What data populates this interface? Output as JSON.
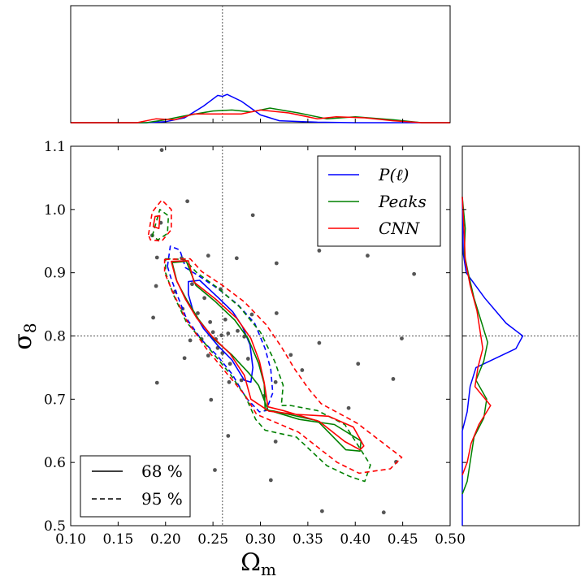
{
  "chart_data": {
    "type": "scatter",
    "xlabel": "Ωm",
    "ylabel": "σ8",
    "xlim": [
      0.1,
      0.5
    ],
    "ylim": [
      0.5,
      1.1
    ],
    "x_ticks": [
      "0.10",
      "0.15",
      "0.20",
      "0.25",
      "0.30",
      "0.35",
      "0.40",
      "0.45",
      "0.50"
    ],
    "y_ticks": [
      "0.5",
      "0.6",
      "0.7",
      "0.8",
      "0.9",
      "1.0",
      "1.1"
    ],
    "fiducial": {
      "x": 0.26,
      "y": 0.8
    },
    "grid": false,
    "points": [
      [
        0.196,
        1.094
      ],
      [
        0.223,
        1.013
      ],
      [
        0.292,
        0.991
      ],
      [
        0.186,
        0.959
      ],
      [
        0.195,
        0.979
      ],
      [
        0.191,
        0.924
      ],
      [
        0.217,
        0.923
      ],
      [
        0.245,
        0.927
      ],
      [
        0.275,
        0.923
      ],
      [
        0.317,
        0.915
      ],
      [
        0.362,
        0.935
      ],
      [
        0.413,
        0.927
      ],
      [
        0.462,
        0.898
      ],
      [
        0.19,
        0.879
      ],
      [
        0.21,
        0.87
      ],
      [
        0.228,
        0.882
      ],
      [
        0.241,
        0.86
      ],
      [
        0.258,
        0.874
      ],
      [
        0.187,
        0.829
      ],
      [
        0.218,
        0.843
      ],
      [
        0.234,
        0.836
      ],
      [
        0.247,
        0.822
      ],
      [
        0.263,
        0.826
      ],
      [
        0.291,
        0.834
      ],
      [
        0.317,
        0.836
      ],
      [
        0.226,
        0.793
      ],
      [
        0.238,
        0.795
      ],
      [
        0.25,
        0.806
      ],
      [
        0.253,
        0.795
      ],
      [
        0.259,
        0.801
      ],
      [
        0.266,
        0.804
      ],
      [
        0.276,
        0.808
      ],
      [
        0.283,
        0.799
      ],
      [
        0.362,
        0.789
      ],
      [
        0.449,
        0.796
      ],
      [
        0.22,
        0.765
      ],
      [
        0.245,
        0.769
      ],
      [
        0.255,
        0.781
      ],
      [
        0.26,
        0.773
      ],
      [
        0.268,
        0.756
      ],
      [
        0.287,
        0.764
      ],
      [
        0.332,
        0.77
      ],
      [
        0.403,
        0.756
      ],
      [
        0.191,
        0.726
      ],
      [
        0.267,
        0.727
      ],
      [
        0.28,
        0.73
      ],
      [
        0.316,
        0.727
      ],
      [
        0.344,
        0.746
      ],
      [
        0.44,
        0.732
      ],
      [
        0.248,
        0.699
      ],
      [
        0.304,
        0.705
      ],
      [
        0.393,
        0.686
      ],
      [
        0.266,
        0.642
      ],
      [
        0.316,
        0.633
      ],
      [
        0.252,
        0.588
      ],
      [
        0.311,
        0.572
      ],
      [
        0.443,
        0.601
      ],
      [
        0.365,
        0.523
      ],
      [
        0.43,
        0.521
      ]
    ],
    "series": [
      {
        "name": "P(ℓ)",
        "color": "#0000ff",
        "contour68": [
          [
            0.224,
            0.886
          ],
          [
            0.236,
            0.888
          ],
          [
            0.256,
            0.86
          ],
          [
            0.271,
            0.838
          ],
          [
            0.281,
            0.815
          ],
          [
            0.289,
            0.786
          ],
          [
            0.292,
            0.75
          ],
          [
            0.29,
            0.727
          ],
          [
            0.283,
            0.73
          ],
          [
            0.27,
            0.762
          ],
          [
            0.255,
            0.785
          ],
          [
            0.24,
            0.812
          ],
          [
            0.229,
            0.84
          ],
          [
            0.224,
            0.866
          ],
          [
            0.224,
            0.886
          ]
        ],
        "contour95": [
          [
            0.202,
            0.91
          ],
          [
            0.205,
            0.942
          ],
          [
            0.215,
            0.936
          ],
          [
            0.221,
            0.908
          ],
          [
            0.235,
            0.895
          ],
          [
            0.256,
            0.874
          ],
          [
            0.276,
            0.85
          ],
          [
            0.294,
            0.82
          ],
          [
            0.305,
            0.78
          ],
          [
            0.311,
            0.747
          ],
          [
            0.313,
            0.71
          ],
          [
            0.306,
            0.682
          ],
          [
            0.299,
            0.68
          ],
          [
            0.285,
            0.702
          ],
          [
            0.27,
            0.74
          ],
          [
            0.255,
            0.768
          ],
          [
            0.238,
            0.794
          ],
          [
            0.222,
            0.828
          ],
          [
            0.213,
            0.862
          ],
          [
            0.206,
            0.89
          ],
          [
            0.202,
            0.91
          ]
        ],
        "marginal_x": [
          [
            0.1,
            0.0
          ],
          [
            0.18,
            0.0
          ],
          [
            0.2,
            0.01
          ],
          [
            0.22,
            0.05
          ],
          [
            0.24,
            0.17
          ],
          [
            0.255,
            0.28
          ],
          [
            0.26,
            0.27
          ],
          [
            0.265,
            0.29
          ],
          [
            0.28,
            0.22
          ],
          [
            0.3,
            0.08
          ],
          [
            0.32,
            0.02
          ],
          [
            0.36,
            0.005
          ],
          [
            0.4,
            0.0
          ],
          [
            0.5,
            0.0
          ]
        ],
        "marginal_y": [
          [
            0.5,
            0.0
          ],
          [
            0.65,
            0.0
          ],
          [
            0.68,
            0.05
          ],
          [
            0.72,
            0.08
          ],
          [
            0.75,
            0.14
          ],
          [
            0.78,
            0.55
          ],
          [
            0.8,
            0.62
          ],
          [
            0.82,
            0.45
          ],
          [
            0.86,
            0.23
          ],
          [
            0.9,
            0.04
          ],
          [
            0.93,
            0.01
          ],
          [
            1.02,
            0.0
          ]
        ]
      },
      {
        "name": "Peaks",
        "color": "#008000",
        "contour68": [
          [
            0.207,
            0.916
          ],
          [
            0.222,
            0.918
          ],
          [
            0.232,
            0.88
          ],
          [
            0.252,
            0.855
          ],
          [
            0.273,
            0.825
          ],
          [
            0.287,
            0.796
          ],
          [
            0.298,
            0.757
          ],
          [
            0.304,
            0.724
          ],
          [
            0.305,
            0.683
          ],
          [
            0.315,
            0.681
          ],
          [
            0.36,
            0.666
          ],
          [
            0.39,
            0.62
          ],
          [
            0.405,
            0.618
          ],
          [
            0.406,
            0.634
          ],
          [
            0.378,
            0.66
          ],
          [
            0.341,
            0.668
          ],
          [
            0.308,
            0.683
          ],
          [
            0.298,
            0.722
          ],
          [
            0.288,
            0.741
          ],
          [
            0.27,
            0.77
          ],
          [
            0.251,
            0.795
          ],
          [
            0.235,
            0.826
          ],
          [
            0.222,
            0.858
          ],
          [
            0.212,
            0.886
          ],
          [
            0.207,
            0.916
          ]
        ],
        "contour95": [
          [
            0.186,
            0.958
          ],
          [
            0.194,
            1.0
          ],
          [
            0.203,
            0.99
          ],
          [
            0.202,
            0.962
          ],
          [
            0.192,
            0.952
          ],
          [
            0.186,
            0.958
          ]
        ],
        "contour95_main": [
          [
            0.2,
            0.922
          ],
          [
            0.22,
            0.921
          ],
          [
            0.233,
            0.9
          ],
          [
            0.255,
            0.876
          ],
          [
            0.278,
            0.846
          ],
          [
            0.3,
            0.806
          ],
          [
            0.315,
            0.76
          ],
          [
            0.324,
            0.722
          ],
          [
            0.322,
            0.69
          ],
          [
            0.332,
            0.69
          ],
          [
            0.36,
            0.682
          ],
          [
            0.389,
            0.66
          ],
          [
            0.416,
            0.596
          ],
          [
            0.41,
            0.57
          ],
          [
            0.394,
            0.578
          ],
          [
            0.37,
            0.595
          ],
          [
            0.338,
            0.64
          ],
          [
            0.305,
            0.651
          ],
          [
            0.295,
            0.668
          ],
          [
            0.284,
            0.705
          ],
          [
            0.268,
            0.74
          ],
          [
            0.245,
            0.782
          ],
          [
            0.222,
            0.822
          ],
          [
            0.208,
            0.866
          ],
          [
            0.2,
            0.9
          ],
          [
            0.2,
            0.922
          ]
        ],
        "marginal_x": [
          [
            0.1,
            0.0
          ],
          [
            0.18,
            0.0
          ],
          [
            0.2,
            0.03
          ],
          [
            0.22,
            0.07
          ],
          [
            0.25,
            0.12
          ],
          [
            0.27,
            0.13
          ],
          [
            0.29,
            0.11
          ],
          [
            0.31,
            0.15
          ],
          [
            0.34,
            0.1
          ],
          [
            0.37,
            0.04
          ],
          [
            0.4,
            0.06
          ],
          [
            0.44,
            0.03
          ],
          [
            0.47,
            0.0
          ],
          [
            0.5,
            0.0
          ]
        ],
        "marginal_y": [
          [
            0.55,
            0.0
          ],
          [
            0.57,
            0.05
          ],
          [
            0.6,
            0.08
          ],
          [
            0.64,
            0.12
          ],
          [
            0.67,
            0.22
          ],
          [
            0.7,
            0.25
          ],
          [
            0.73,
            0.14
          ],
          [
            0.76,
            0.22
          ],
          [
            0.79,
            0.26
          ],
          [
            0.82,
            0.2
          ],
          [
            0.86,
            0.12
          ],
          [
            0.9,
            0.06
          ],
          [
            0.93,
            0.02
          ],
          [
            0.97,
            0.03
          ],
          [
            1.02,
            0.0
          ]
        ]
      },
      {
        "name": "CNN",
        "color": "#ff0000",
        "contour68": [
          [
            0.187,
            0.973
          ],
          [
            0.189,
            0.989
          ],
          [
            0.194,
            0.99
          ],
          [
            0.193,
            0.97
          ],
          [
            0.187,
            0.973
          ]
        ],
        "contour68_main": [
          [
            0.206,
            0.918
          ],
          [
            0.224,
            0.919
          ],
          [
            0.23,
            0.885
          ],
          [
            0.253,
            0.858
          ],
          [
            0.275,
            0.828
          ],
          [
            0.29,
            0.796
          ],
          [
            0.299,
            0.76
          ],
          [
            0.304,
            0.726
          ],
          [
            0.308,
            0.688
          ],
          [
            0.324,
            0.682
          ],
          [
            0.362,
            0.665
          ],
          [
            0.389,
            0.633
          ],
          [
            0.405,
            0.62
          ],
          [
            0.409,
            0.626
          ],
          [
            0.398,
            0.656
          ],
          [
            0.372,
            0.673
          ],
          [
            0.338,
            0.676
          ],
          [
            0.309,
            0.681
          ],
          [
            0.29,
            0.7
          ],
          [
            0.283,
            0.738
          ],
          [
            0.268,
            0.772
          ],
          [
            0.25,
            0.798
          ],
          [
            0.233,
            0.828
          ],
          [
            0.221,
            0.858
          ],
          [
            0.211,
            0.89
          ],
          [
            0.206,
            0.918
          ]
        ],
        "contour95": [
          [
            0.182,
            0.96
          ],
          [
            0.186,
            0.996
          ],
          [
            0.196,
            1.015
          ],
          [
            0.206,
            1.0
          ],
          [
            0.206,
            0.968
          ],
          [
            0.196,
            0.95
          ],
          [
            0.184,
            0.952
          ],
          [
            0.182,
            0.96
          ]
        ],
        "contour95_main": [
          [
            0.199,
            0.921
          ],
          [
            0.226,
            0.922
          ],
          [
            0.238,
            0.902
          ],
          [
            0.26,
            0.88
          ],
          [
            0.283,
            0.854
          ],
          [
            0.306,
            0.818
          ],
          [
            0.322,
            0.783
          ],
          [
            0.336,
            0.748
          ],
          [
            0.35,
            0.718
          ],
          [
            0.364,
            0.693
          ],
          [
            0.402,
            0.662
          ],
          [
            0.449,
            0.608
          ],
          [
            0.437,
            0.59
          ],
          [
            0.404,
            0.583
          ],
          [
            0.381,
            0.6
          ],
          [
            0.34,
            0.648
          ],
          [
            0.296,
            0.676
          ],
          [
            0.284,
            0.706
          ],
          [
            0.265,
            0.74
          ],
          [
            0.243,
            0.78
          ],
          [
            0.222,
            0.825
          ],
          [
            0.208,
            0.868
          ],
          [
            0.199,
            0.9
          ],
          [
            0.199,
            0.921
          ]
        ],
        "marginal_x": [
          [
            0.1,
            0.0
          ],
          [
            0.17,
            0.0
          ],
          [
            0.19,
            0.04
          ],
          [
            0.21,
            0.03
          ],
          [
            0.23,
            0.09
          ],
          [
            0.26,
            0.09
          ],
          [
            0.28,
            0.09
          ],
          [
            0.3,
            0.13
          ],
          [
            0.33,
            0.1
          ],
          [
            0.36,
            0.04
          ],
          [
            0.38,
            0.06
          ],
          [
            0.41,
            0.05
          ],
          [
            0.44,
            0.02
          ],
          [
            0.47,
            0.0
          ],
          [
            0.5,
            0.0
          ]
        ],
        "marginal_y": [
          [
            0.58,
            0.0
          ],
          [
            0.6,
            0.05
          ],
          [
            0.63,
            0.09
          ],
          [
            0.66,
            0.17
          ],
          [
            0.69,
            0.29
          ],
          [
            0.72,
            0.13
          ],
          [
            0.75,
            0.16
          ],
          [
            0.78,
            0.21
          ],
          [
            0.81,
            0.18
          ],
          [
            0.84,
            0.15
          ],
          [
            0.88,
            0.08
          ],
          [
            0.92,
            0.03
          ],
          [
            0.96,
            0.02
          ],
          [
            1.02,
            0.0
          ]
        ]
      }
    ],
    "legend": {
      "placement": "top-right",
      "entries": [
        {
          "label": "P(ℓ)",
          "color": "#0000ff"
        },
        {
          "label": "Peaks",
          "color": "#008000"
        },
        {
          "label": "CNN",
          "color": "#ff0000"
        }
      ]
    },
    "linestyle_legend": {
      "placement": "bottom-left",
      "entries": [
        {
          "label": "68 %",
          "dash": "solid",
          "color": "#000000"
        },
        {
          "label": "95 %",
          "dash": "dashed",
          "color": "#000000"
        }
      ]
    }
  }
}
